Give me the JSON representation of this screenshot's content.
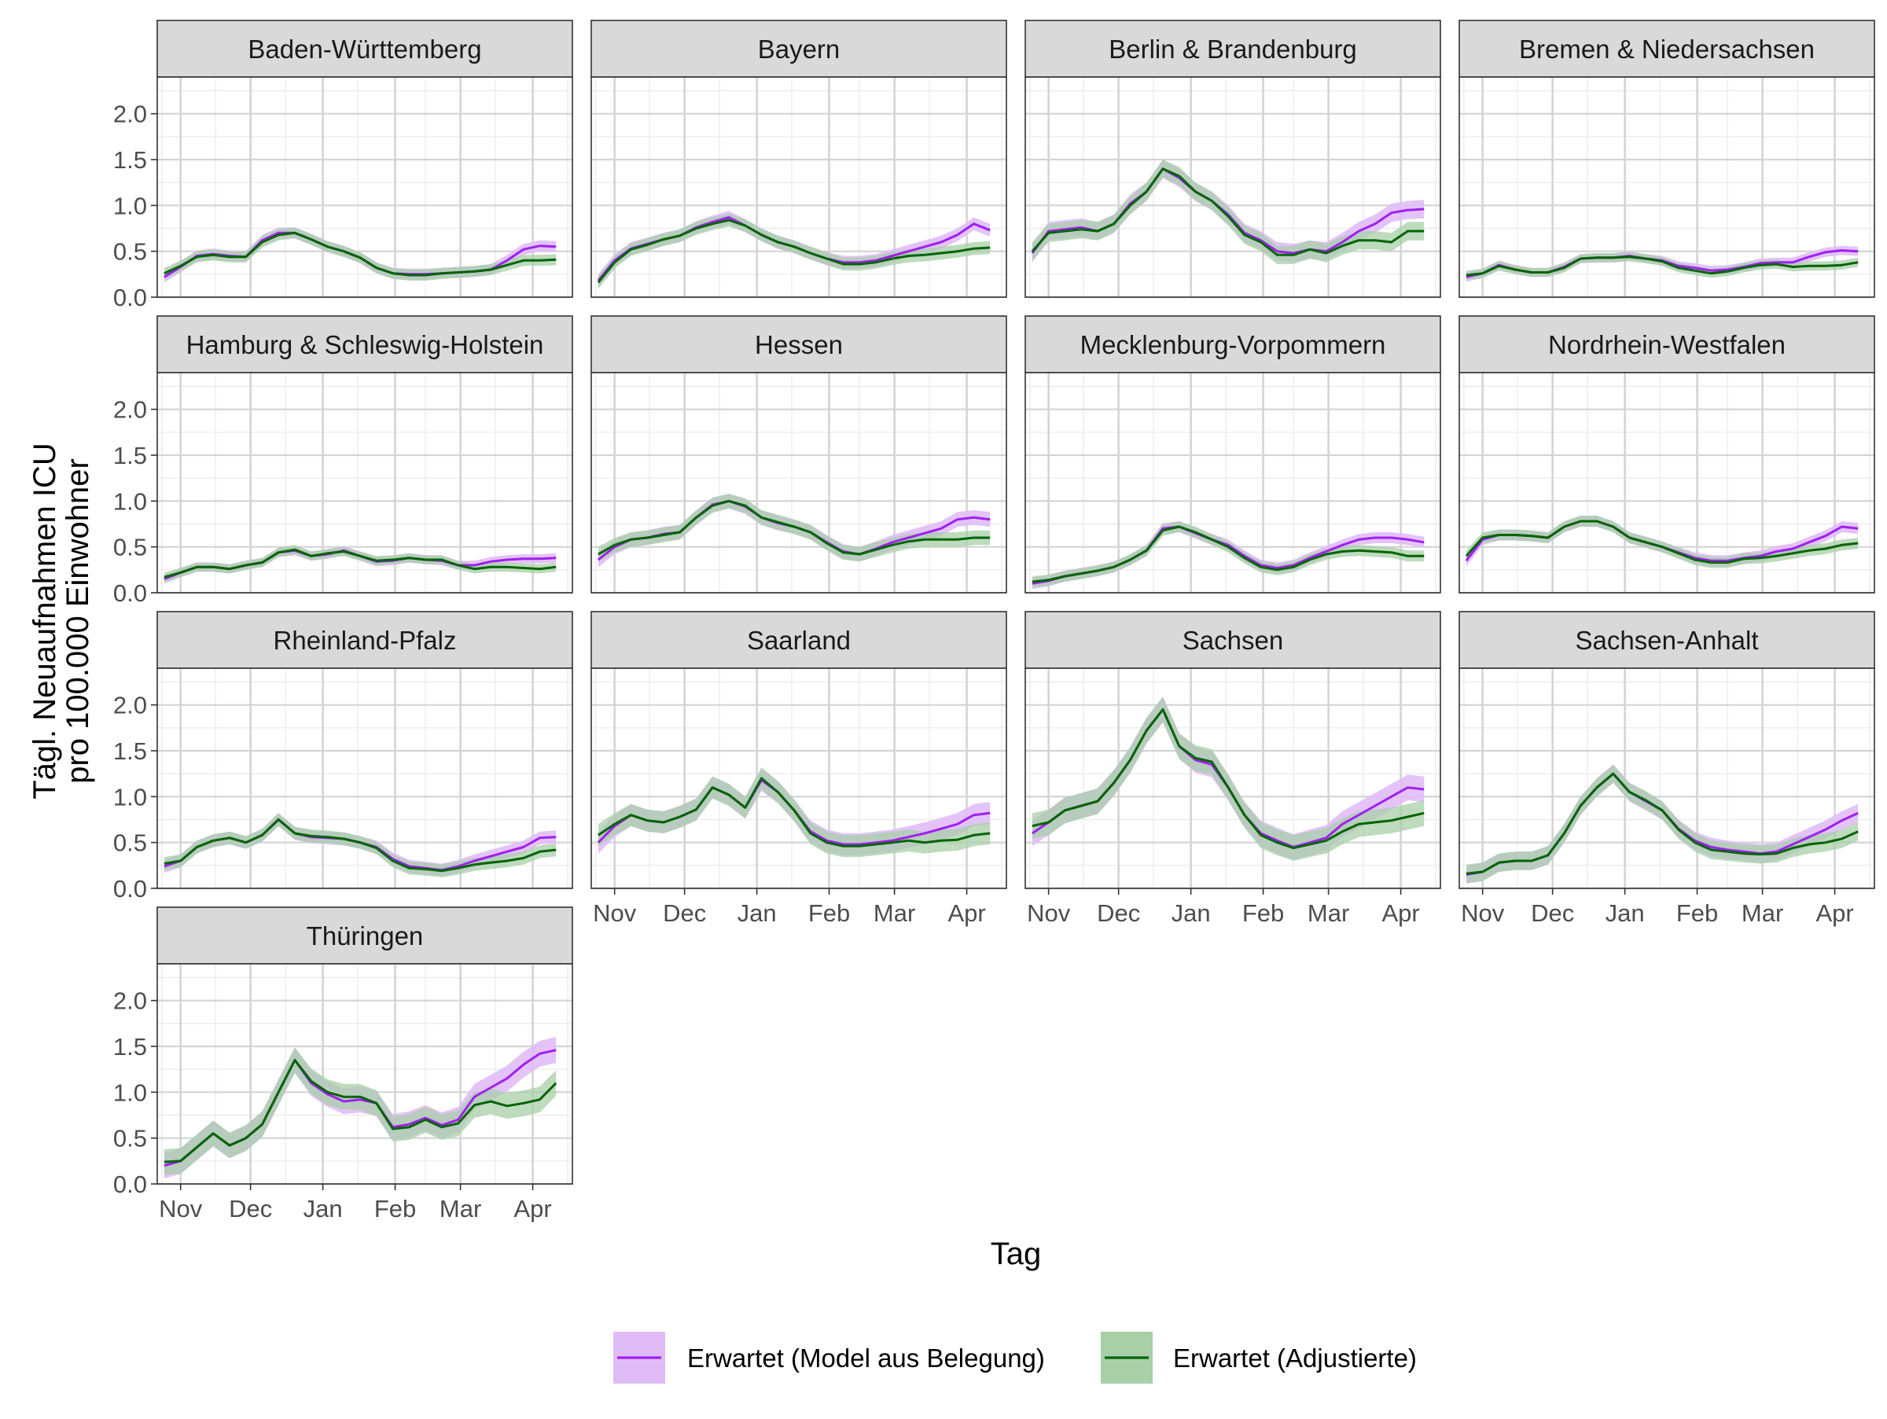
{
  "chart_data": {
    "type": "line",
    "x_unit": "date",
    "x_ticks": [
      {
        "label": "Nov",
        "date": "2021-11-01"
      },
      {
        "label": "Dec",
        "date": "2021-12-01"
      },
      {
        "label": "Jan",
        "date": "2022-01-01"
      },
      {
        "label": "Feb",
        "date": "2022-02-01"
      },
      {
        "label": "Mar",
        "date": "2022-03-01"
      },
      {
        "label": "Apr",
        "date": "2022-04-01"
      }
    ],
    "xlim": [
      "2021-10-22",
      "2022-04-18"
    ],
    "ylim": [
      0,
      2.4
    ],
    "y_ticks": [
      "0.0",
      "0.5",
      "1.0",
      "1.5",
      "2.0"
    ],
    "xlabel": "Tag",
    "ylabel": [
      "Tägl. Neuaufnahmen ICU",
      "pro 100.000 Einwohner"
    ],
    "grid": true,
    "legend_position": "bottom",
    "series_names": [
      "Erwartet (Model aus Belegung)",
      "Erwartet (Adjustierte)"
    ],
    "colors": {
      "model_line": "#a020f0",
      "model_band": "#e0bcf7",
      "adjusted_line": "#006400",
      "adjusted_band": "#a8cfa8",
      "strip_fill": "#d9d9d9",
      "grid_major": "#d4d4d4",
      "grid_minor": "#ececec"
    },
    "dates": [
      "2021-10-25",
      "2021-11-01",
      "2021-11-08",
      "2021-11-15",
      "2021-11-22",
      "2021-11-29",
      "2021-12-06",
      "2021-12-13",
      "2021-12-20",
      "2021-12-27",
      "2022-01-03",
      "2022-01-10",
      "2022-01-17",
      "2022-01-24",
      "2022-01-31",
      "2022-02-07",
      "2022-02-14",
      "2022-02-21",
      "2022-02-28",
      "2022-03-07",
      "2022-03-14",
      "2022-03-21",
      "2022-03-28",
      "2022-04-04",
      "2022-04-11"
    ],
    "panels": [
      {
        "name": "Baden-Württemberg",
        "model": [
          0.22,
          0.33,
          0.45,
          0.47,
          0.45,
          0.44,
          0.62,
          0.7,
          0.7,
          0.63,
          0.55,
          0.5,
          0.43,
          0.32,
          0.26,
          0.25,
          0.25,
          0.26,
          0.27,
          0.28,
          0.3,
          0.4,
          0.52,
          0.56,
          0.55
        ],
        "adjusted": [
          0.26,
          0.34,
          0.44,
          0.46,
          0.44,
          0.44,
          0.6,
          0.68,
          0.7,
          0.63,
          0.55,
          0.5,
          0.43,
          0.32,
          0.26,
          0.24,
          0.24,
          0.26,
          0.27,
          0.28,
          0.3,
          0.35,
          0.4,
          0.4,
          0.41
        ],
        "band": 0.06
      },
      {
        "name": "Bayern",
        "model": [
          0.18,
          0.4,
          0.53,
          0.58,
          0.63,
          0.67,
          0.76,
          0.82,
          0.87,
          0.78,
          0.68,
          0.6,
          0.55,
          0.48,
          0.42,
          0.38,
          0.38,
          0.4,
          0.45,
          0.5,
          0.55,
          0.6,
          0.68,
          0.8,
          0.73
        ],
        "adjusted": [
          0.16,
          0.38,
          0.52,
          0.57,
          0.63,
          0.67,
          0.75,
          0.8,
          0.84,
          0.78,
          0.68,
          0.6,
          0.55,
          0.48,
          0.42,
          0.36,
          0.36,
          0.38,
          0.42,
          0.45,
          0.46,
          0.48,
          0.5,
          0.53,
          0.54
        ],
        "band": 0.07
      },
      {
        "name": "Berlin & Brandenburg",
        "model": [
          0.48,
          0.72,
          0.74,
          0.76,
          0.72,
          0.8,
          1.02,
          1.15,
          1.4,
          1.3,
          1.15,
          1.05,
          0.9,
          0.7,
          0.62,
          0.5,
          0.48,
          0.52,
          0.5,
          0.6,
          0.72,
          0.8,
          0.92,
          0.95,
          0.96
        ],
        "adjusted": [
          0.5,
          0.7,
          0.72,
          0.74,
          0.72,
          0.8,
          1.0,
          1.15,
          1.4,
          1.32,
          1.15,
          1.05,
          0.88,
          0.68,
          0.6,
          0.46,
          0.46,
          0.52,
          0.48,
          0.56,
          0.62,
          0.62,
          0.6,
          0.72,
          0.72
        ],
        "band": 0.1
      },
      {
        "name": "Bremen & Niedersachsen",
        "model": [
          0.22,
          0.26,
          0.35,
          0.3,
          0.27,
          0.27,
          0.33,
          0.42,
          0.43,
          0.43,
          0.45,
          0.42,
          0.4,
          0.34,
          0.32,
          0.29,
          0.3,
          0.33,
          0.37,
          0.38,
          0.38,
          0.44,
          0.49,
          0.51,
          0.5
        ],
        "adjusted": [
          0.24,
          0.26,
          0.34,
          0.3,
          0.27,
          0.27,
          0.32,
          0.42,
          0.43,
          0.43,
          0.44,
          0.42,
          0.39,
          0.32,
          0.29,
          0.26,
          0.28,
          0.32,
          0.35,
          0.36,
          0.33,
          0.34,
          0.34,
          0.35,
          0.38
        ],
        "band": 0.05
      },
      {
        "name": "Hamburg & Schleswig-Holstein",
        "model": [
          0.15,
          0.22,
          0.28,
          0.28,
          0.26,
          0.3,
          0.33,
          0.44,
          0.46,
          0.4,
          0.42,
          0.46,
          0.4,
          0.34,
          0.35,
          0.38,
          0.36,
          0.35,
          0.3,
          0.3,
          0.34,
          0.36,
          0.37,
          0.37,
          0.38
        ],
        "adjusted": [
          0.17,
          0.22,
          0.28,
          0.28,
          0.26,
          0.3,
          0.33,
          0.44,
          0.47,
          0.4,
          0.43,
          0.45,
          0.4,
          0.35,
          0.36,
          0.38,
          0.36,
          0.36,
          0.3,
          0.26,
          0.28,
          0.28,
          0.27,
          0.26,
          0.28
        ],
        "band": 0.05
      },
      {
        "name": "Hessen",
        "model": [
          0.36,
          0.5,
          0.58,
          0.6,
          0.64,
          0.66,
          0.82,
          0.96,
          1.0,
          0.94,
          0.82,
          0.76,
          0.72,
          0.66,
          0.55,
          0.45,
          0.42,
          0.48,
          0.55,
          0.6,
          0.65,
          0.7,
          0.8,
          0.82,
          0.8
        ],
        "adjusted": [
          0.42,
          0.52,
          0.58,
          0.6,
          0.63,
          0.66,
          0.82,
          0.95,
          1.0,
          0.95,
          0.82,
          0.77,
          0.72,
          0.66,
          0.54,
          0.44,
          0.42,
          0.47,
          0.52,
          0.56,
          0.58,
          0.58,
          0.58,
          0.6,
          0.6
        ],
        "band": 0.08
      },
      {
        "name": "Mecklenburg-Vorpommern",
        "model": [
          0.1,
          0.13,
          0.18,
          0.21,
          0.24,
          0.28,
          0.36,
          0.46,
          0.7,
          0.72,
          0.65,
          0.58,
          0.52,
          0.4,
          0.3,
          0.27,
          0.3,
          0.38,
          0.45,
          0.52,
          0.58,
          0.6,
          0.6,
          0.58,
          0.55
        ],
        "adjusted": [
          0.12,
          0.14,
          0.18,
          0.21,
          0.24,
          0.28,
          0.36,
          0.46,
          0.68,
          0.72,
          0.66,
          0.58,
          0.5,
          0.38,
          0.28,
          0.25,
          0.28,
          0.36,
          0.42,
          0.45,
          0.46,
          0.45,
          0.44,
          0.4,
          0.4
        ],
        "band": 0.06
      },
      {
        "name": "Nordrhein-Westfalen",
        "model": [
          0.35,
          0.58,
          0.63,
          0.63,
          0.62,
          0.6,
          0.72,
          0.78,
          0.78,
          0.72,
          0.6,
          0.55,
          0.5,
          0.44,
          0.38,
          0.35,
          0.35,
          0.38,
          0.4,
          0.45,
          0.48,
          0.55,
          0.62,
          0.72,
          0.7
        ],
        "adjusted": [
          0.4,
          0.6,
          0.63,
          0.63,
          0.62,
          0.6,
          0.72,
          0.78,
          0.78,
          0.72,
          0.6,
          0.55,
          0.5,
          0.43,
          0.36,
          0.33,
          0.33,
          0.37,
          0.38,
          0.4,
          0.43,
          0.46,
          0.48,
          0.52,
          0.54
        ],
        "band": 0.06
      },
      {
        "name": "Rheinland-Pfalz",
        "model": [
          0.24,
          0.3,
          0.45,
          0.52,
          0.55,
          0.5,
          0.58,
          0.75,
          0.6,
          0.56,
          0.55,
          0.54,
          0.5,
          0.45,
          0.32,
          0.24,
          0.22,
          0.2,
          0.24,
          0.3,
          0.35,
          0.4,
          0.45,
          0.55,
          0.56
        ],
        "adjusted": [
          0.27,
          0.3,
          0.45,
          0.52,
          0.55,
          0.5,
          0.58,
          0.75,
          0.6,
          0.57,
          0.56,
          0.54,
          0.5,
          0.44,
          0.3,
          0.22,
          0.21,
          0.19,
          0.22,
          0.26,
          0.28,
          0.3,
          0.33,
          0.4,
          0.42
        ],
        "band": 0.07
      },
      {
        "name": "Saarland",
        "model": [
          0.5,
          0.68,
          0.8,
          0.74,
          0.72,
          0.78,
          0.86,
          1.1,
          1.02,
          0.88,
          1.18,
          1.05,
          0.85,
          0.62,
          0.52,
          0.48,
          0.48,
          0.5,
          0.52,
          0.56,
          0.6,
          0.65,
          0.7,
          0.8,
          0.82
        ],
        "adjusted": [
          0.58,
          0.7,
          0.8,
          0.74,
          0.72,
          0.78,
          0.86,
          1.1,
          1.02,
          0.88,
          1.2,
          1.05,
          0.85,
          0.6,
          0.5,
          0.46,
          0.46,
          0.48,
          0.5,
          0.52,
          0.5,
          0.52,
          0.53,
          0.58,
          0.6
        ],
        "band": 0.12
      },
      {
        "name": "Sachsen",
        "model": [
          0.6,
          0.72,
          0.85,
          0.9,
          0.95,
          1.15,
          1.4,
          1.72,
          1.95,
          1.55,
          1.4,
          1.35,
          1.1,
          0.8,
          0.6,
          0.52,
          0.45,
          0.5,
          0.55,
          0.7,
          0.8,
          0.9,
          1.0,
          1.1,
          1.08
        ],
        "adjusted": [
          0.68,
          0.72,
          0.85,
          0.9,
          0.95,
          1.15,
          1.4,
          1.72,
          1.95,
          1.55,
          1.42,
          1.38,
          1.1,
          0.8,
          0.58,
          0.5,
          0.44,
          0.48,
          0.52,
          0.62,
          0.7,
          0.72,
          0.74,
          0.78,
          0.82
        ],
        "band": 0.14
      },
      {
        "name": "Sachsen-Anhalt",
        "model": [
          0.15,
          0.18,
          0.28,
          0.3,
          0.3,
          0.36,
          0.6,
          0.9,
          1.1,
          1.25,
          1.05,
          0.95,
          0.85,
          0.65,
          0.52,
          0.45,
          0.42,
          0.4,
          0.38,
          0.4,
          0.48,
          0.56,
          0.64,
          0.74,
          0.82
        ],
        "adjusted": [
          0.16,
          0.18,
          0.28,
          0.3,
          0.3,
          0.36,
          0.6,
          0.9,
          1.1,
          1.25,
          1.05,
          0.96,
          0.85,
          0.64,
          0.5,
          0.42,
          0.4,
          0.38,
          0.37,
          0.38,
          0.44,
          0.48,
          0.5,
          0.54,
          0.62
        ],
        "band": 0.1
      },
      {
        "name": "Thüringen",
        "model": [
          0.2,
          0.25,
          0.4,
          0.55,
          0.42,
          0.5,
          0.65,
          1.0,
          1.35,
          1.1,
          0.98,
          0.9,
          0.92,
          0.88,
          0.62,
          0.65,
          0.72,
          0.64,
          0.7,
          0.95,
          1.05,
          1.15,
          1.3,
          1.42,
          1.46
        ],
        "adjusted": [
          0.24,
          0.25,
          0.4,
          0.55,
          0.42,
          0.5,
          0.65,
          1.0,
          1.35,
          1.12,
          1.0,
          0.95,
          0.95,
          0.88,
          0.6,
          0.62,
          0.7,
          0.62,
          0.66,
          0.86,
          0.9,
          0.85,
          0.88,
          0.92,
          1.1
        ],
        "band": 0.14
      }
    ]
  }
}
